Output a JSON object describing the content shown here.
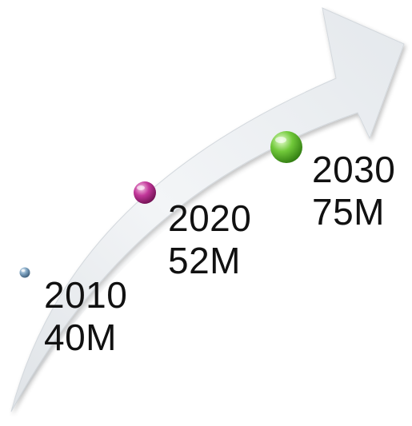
{
  "milestones": [
    {
      "year": "2010",
      "value": "40M",
      "color": "#5f86a8"
    },
    {
      "year": "2020",
      "value": "52M",
      "color": "#b0267f"
    },
    {
      "year": "2030",
      "value": "75M",
      "color": "#5fb52b"
    }
  ],
  "colors": {
    "arrow_light": "#f4f6f8",
    "arrow_mid": "#e2e6ea",
    "arrow_shadow": "#c9cfd5",
    "text": "#111111"
  }
}
